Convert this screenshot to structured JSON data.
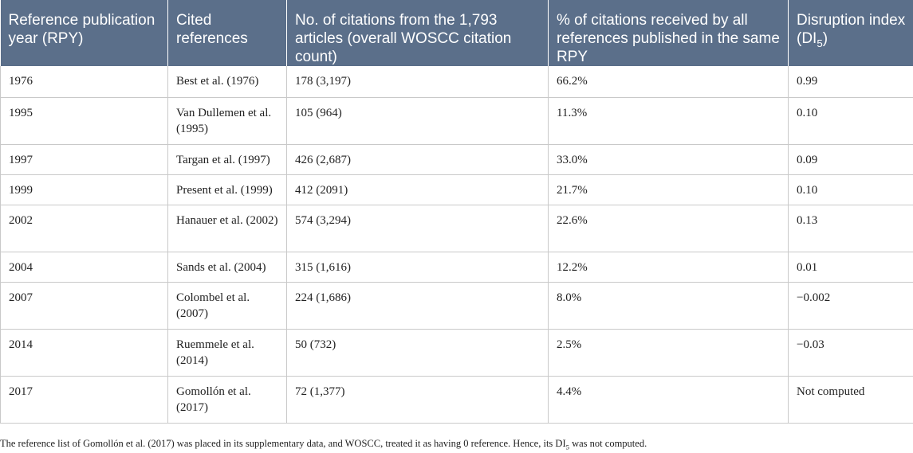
{
  "table": {
    "headers": [
      "Reference publication year (RPY)",
      "Cited references",
      "No. of citations from the 1,793 articles (overall WOSCC citation count)",
      "% of citations received by all references published in the same RPY"
    ],
    "header_di_main": "Disruption index (DI",
    "header_di_sub": "5",
    "header_di_close": ")",
    "rows": [
      {
        "rpy": "1976",
        "ref": "Best et al. (1976)",
        "citations": "178 (3,197)",
        "pct": "66.2%",
        "di": "0.99"
      },
      {
        "rpy": "1995",
        "ref": "Van Dullemen et al. (1995)",
        "citations": "105 (964)",
        "pct": "11.3%",
        "di": "0.10"
      },
      {
        "rpy": "1997",
        "ref": "Targan et al. (1997)",
        "citations": "426 (2,687)",
        "pct": "33.0%",
        "di": "0.09"
      },
      {
        "rpy": "1999",
        "ref": "Present et al. (1999)",
        "citations": "412 (2091)",
        "pct": "21.7%",
        "di": "0.10"
      },
      {
        "rpy": "2002",
        "ref": "Hanauer et al. (2002)",
        "citations": "574 (3,294)",
        "pct": "22.6%",
        "di": "0.13"
      },
      {
        "rpy": "2004",
        "ref": "Sands et al. (2004)",
        "citations": "315 (1,616)",
        "pct": "12.2%",
        "di": "0.01"
      },
      {
        "rpy": "2007",
        "ref": "Colombel et al. (2007)",
        "citations": "224 (1,686)",
        "pct": "8.0%",
        "di": "−0.002"
      },
      {
        "rpy": "2014",
        "ref": "Ruemmele et al. (2014)",
        "citations": "50 (732)",
        "pct": "2.5%",
        "di": "−0.03"
      },
      {
        "rpy": "2017",
        "ref": "Gomollón et al. (2017)",
        "citations": "72 (1,377)",
        "pct": "4.4%",
        "di": "Not computed"
      }
    ]
  },
  "footnote": {
    "text_before": "The reference list of Gomollón et al. (2017) was placed in its supplementary data, and WOSCC, treated it as having 0 reference. Hence, its DI",
    "sub": "5",
    "text_after": " was not computed."
  }
}
